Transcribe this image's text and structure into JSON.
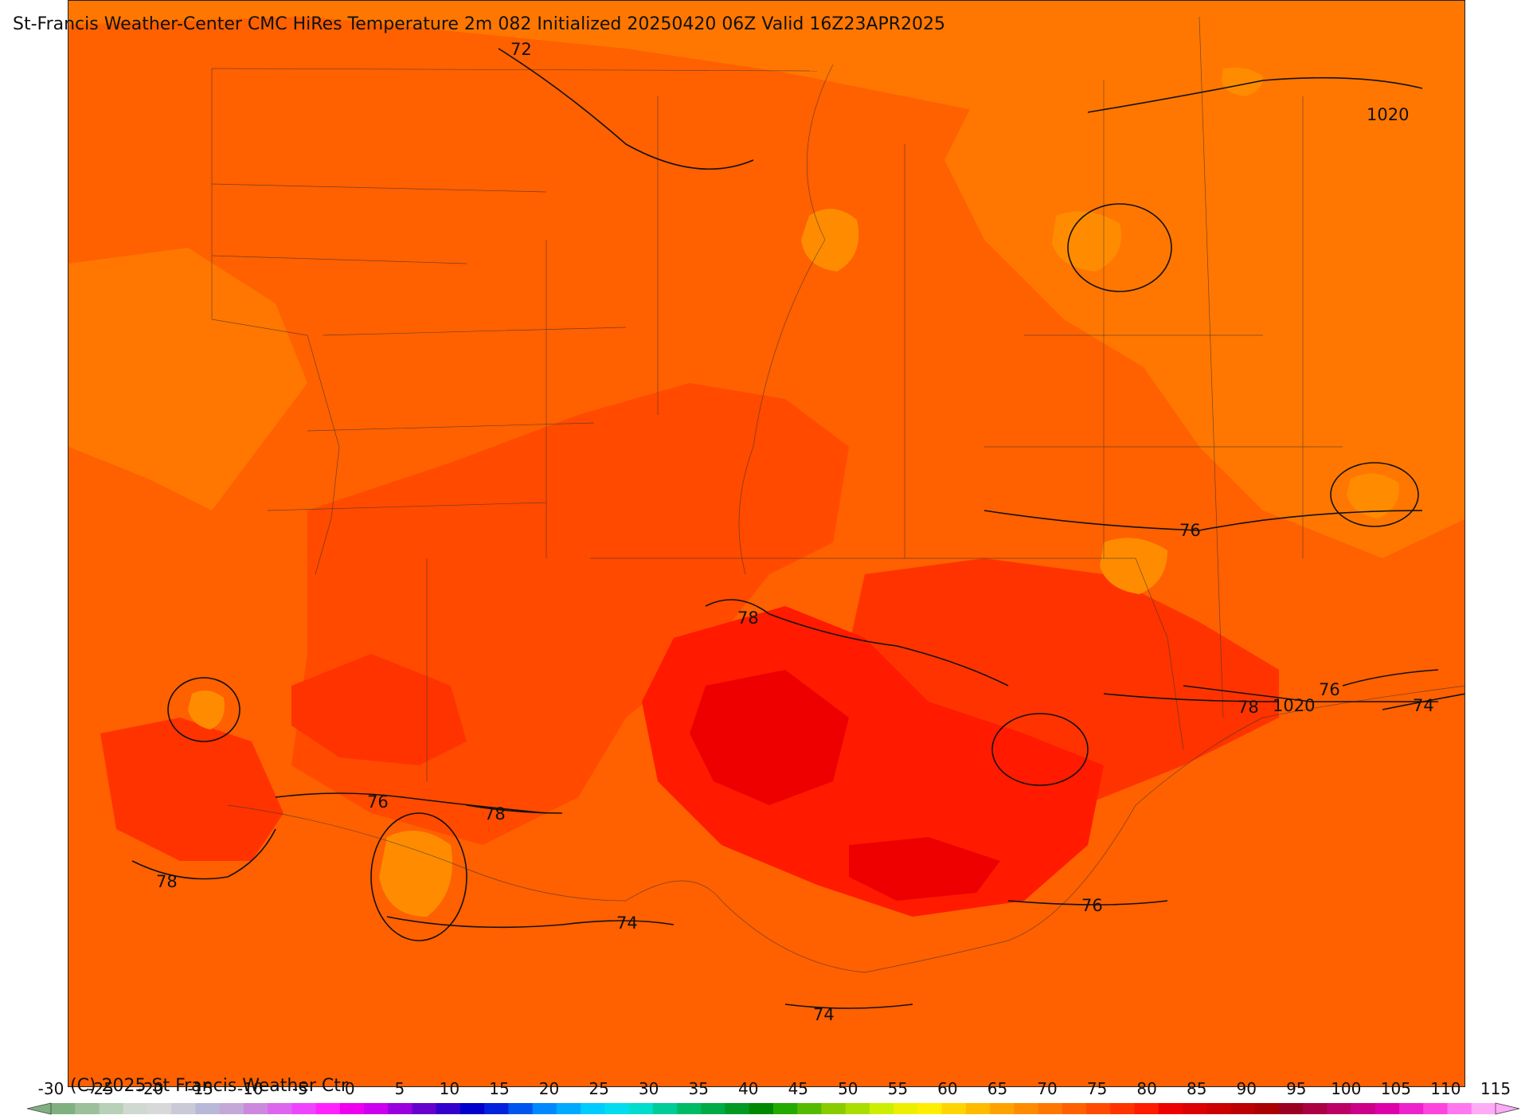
{
  "title": "St-Francis Weather-Center CMC HiRes Temperature 2m  082 Initialized 20250420 06Z Valid 16Z23APR2025",
  "copyright": "(C) 2025 St Francis Weather Ctr",
  "contour_labels": [
    {
      "text": "72"
    },
    {
      "text": "1020"
    },
    {
      "text": "76"
    },
    {
      "text": "78"
    },
    {
      "text": "1020"
    },
    {
      "text": "76"
    },
    {
      "text": "78"
    },
    {
      "text": "74"
    },
    {
      "text": "76"
    },
    {
      "text": "78"
    },
    {
      "text": "78"
    },
    {
      "text": "74"
    },
    {
      "text": "76"
    },
    {
      "text": "74"
    }
  ],
  "colorbar": {
    "ticks": [
      "-30",
      "-25",
      "-20",
      "-15",
      "-10",
      "-5",
      "0",
      "5",
      "10",
      "15",
      "20",
      "25",
      "30",
      "35",
      "40",
      "45",
      "50",
      "55",
      "60",
      "65",
      "70",
      "75",
      "80",
      "85",
      "90",
      "95",
      "100",
      "105",
      "110",
      "115"
    ],
    "min": -30,
    "max": 115,
    "step": 2.5,
    "colors": [
      "#7fb07f",
      "#9cbf9c",
      "#b8cfb8",
      "#cfd9cf",
      "#d8d8d8",
      "#c9c9d8",
      "#b8b8d8",
      "#c4a8d8",
      "#cc88dd",
      "#dd66ee",
      "#ee44ff",
      "#ff22ff",
      "#ee00ee",
      "#cc00ee",
      "#9900dd",
      "#6600cc",
      "#3300cc",
      "#0000cc",
      "#0022dd",
      "#0055ee",
      "#0088ff",
      "#00aaff",
      "#00ccff",
      "#00ddee",
      "#00ddcc",
      "#00cc99",
      "#00bb66",
      "#00aa44",
      "#009922",
      "#008800",
      "#22aa00",
      "#55bb00",
      "#88cc00",
      "#aadd00",
      "#ccee00",
      "#eeee00",
      "#ffee00",
      "#ffd400",
      "#ffbb00",
      "#ffa200",
      "#ff8c00",
      "#ff7700",
      "#ff6000",
      "#ff4a00",
      "#ff3300",
      "#ff1a00",
      "#ee0000",
      "#dd0000",
      "#cc0000",
      "#bb0000",
      "#aa0000",
      "#990022",
      "#aa0044",
      "#bb0066",
      "#cc0088",
      "#dd00aa",
      "#ee22cc",
      "#ff44dd",
      "#ff77ee",
      "#ffaaf6"
    ]
  },
  "palette": {
    "deep_orange": "#ff8c00",
    "orange": "#ff7700",
    "orange_red": "#ff6000",
    "red_orange": "#ff4a00",
    "red": "#ff3300",
    "bright_red": "#ff1a00",
    "dark_red": "#ee0000"
  }
}
